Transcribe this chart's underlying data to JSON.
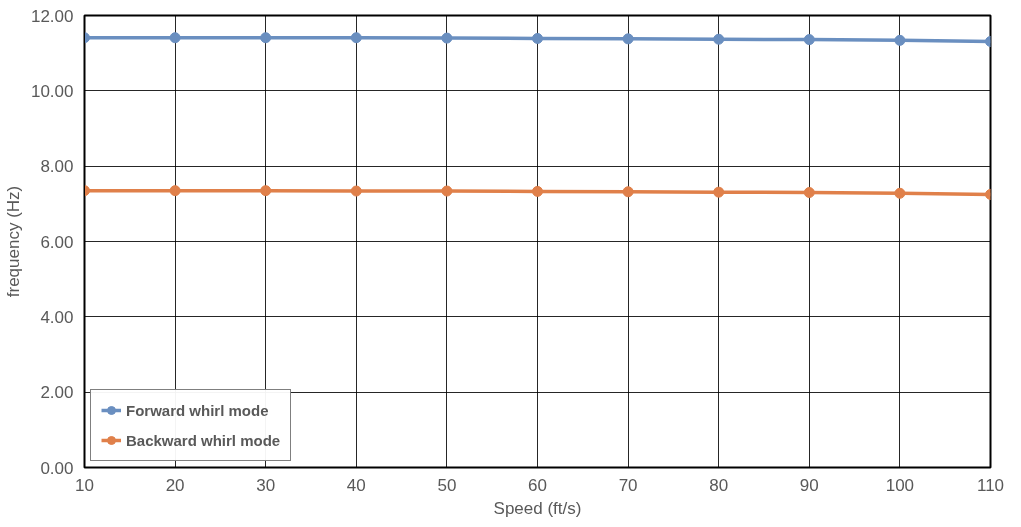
{
  "chart_data": {
    "type": "line",
    "xlabel": "Speed (ft/s)",
    "ylabel": "frequency (Hz)",
    "x": [
      10,
      20,
      30,
      40,
      50,
      60,
      70,
      80,
      90,
      100,
      110
    ],
    "series": [
      {
        "name": "Forward whirl mode",
        "color": "#6a8fc0",
        "values": [
          11.41,
          11.41,
          11.41,
          11.41,
          11.4,
          11.39,
          11.38,
          11.37,
          11.36,
          11.34,
          11.31
        ]
      },
      {
        "name": "Backward whirl mode",
        "color": "#e0804a",
        "values": [
          7.35,
          7.35,
          7.35,
          7.34,
          7.34,
          7.33,
          7.32,
          7.31,
          7.3,
          7.28,
          7.25
        ]
      }
    ],
    "xlim": [
      10,
      110
    ],
    "xticks": [
      10,
      20,
      30,
      40,
      50,
      60,
      70,
      80,
      90,
      100,
      110
    ],
    "ylim": [
      0,
      12
    ],
    "yticks": [
      {
        "value": 0,
        "label": "0.00"
      },
      {
        "value": 2,
        "label": "2.00"
      },
      {
        "value": 4,
        "label": "4.00"
      },
      {
        "value": 6,
        "label": "6.00"
      },
      {
        "value": 8,
        "label": "8.00"
      },
      {
        "value": 10,
        "label": "10.00"
      },
      {
        "value": 12,
        "label": "12.00"
      }
    ],
    "grid": true,
    "legend": "bottom left",
    "marker": "circle",
    "line_style": "solid"
  }
}
